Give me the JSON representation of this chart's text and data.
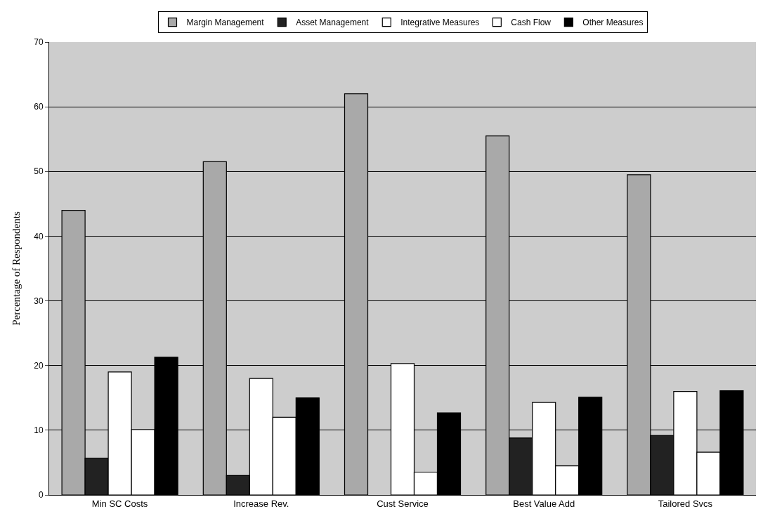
{
  "chart_data": {
    "type": "bar",
    "ylabel": "Percentage of Respondents",
    "categories": [
      "Min SC Costs",
      "Increase Rev.",
      "Cust Service",
      "Best Value Add",
      "Tailored Svcs"
    ],
    "series": [
      {
        "name": "Margin Management",
        "color": "#a9a9a9",
        "values": [
          44,
          51.5,
          62,
          55.5,
          49.5
        ]
      },
      {
        "name": "Asset Management",
        "color": "#222222",
        "values": [
          5.7,
          3,
          null,
          8.8,
          9.2
        ]
      },
      {
        "name": "Integrative Measures",
        "color": "#ffffff",
        "values": [
          19,
          18,
          20.3,
          14.3,
          16
        ]
      },
      {
        "name": "Cash Flow",
        "color": "#ffffff",
        "values": [
          10.1,
          12,
          3.5,
          4.5,
          6.6
        ]
      },
      {
        "name": "Other Measures",
        "color": "#000000",
        "values": [
          21.3,
          15,
          12.7,
          15.1,
          16.1
        ]
      }
    ],
    "ylim": [
      0,
      70
    ],
    "yticks": [
      0,
      10,
      20,
      30,
      40,
      50,
      60,
      70
    ],
    "grid": "y",
    "legend": "top"
  }
}
